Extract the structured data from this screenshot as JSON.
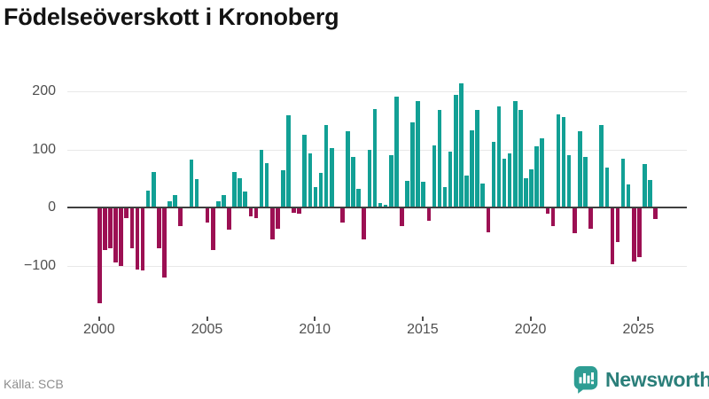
{
  "title": "Födelseöverskott i Kronoberg",
  "source": "Källa: SCB",
  "logo": {
    "text": "Newsworthy"
  },
  "colors": {
    "positive": "#12a095",
    "negative": "#9c1053",
    "grid": "#e8e8e8",
    "zero_line": "#3f3f3f",
    "tick_label": "#4f4f4f",
    "title": "#131313",
    "source": "#8e8e8e",
    "logo_icon": "#2e9d93",
    "logo_text": "#2b7f7a",
    "background": "#ffffff"
  },
  "chart_data": {
    "type": "bar",
    "title": "Födelseöverskott i Kronoberg",
    "xlabel": "",
    "ylabel": "",
    "x_start": "2000 Q1",
    "frequency": "quarterly",
    "values": [
      -163,
      -73,
      -70,
      -94,
      -100,
      -17,
      -70,
      -106,
      -108,
      29,
      62,
      -70,
      -119,
      12,
      22,
      -31,
      0,
      83,
      49,
      0,
      -26,
      -73,
      12,
      22,
      -37,
      61,
      51,
      28,
      -15,
      -18,
      99,
      77,
      -54,
      -36,
      65,
      158,
      -8,
      -10,
      126,
      93,
      36,
      60,
      142,
      103,
      0,
      -25,
      132,
      87,
      32,
      -54,
      99,
      170,
      9,
      5,
      91,
      191,
      -32,
      47,
      146,
      183,
      45,
      -22,
      107,
      168,
      36,
      96,
      193,
      214,
      56,
      133,
      168,
      42,
      -42,
      113,
      174,
      85,
      94,
      183,
      168,
      51,
      66,
      106,
      119,
      -10,
      -31,
      161,
      155,
      91,
      -43,
      132,
      88,
      -36,
      0,
      142,
      69,
      -97,
      -59,
      85,
      40,
      -92,
      -84,
      75,
      48,
      -19
    ],
    "yticks": [
      200,
      100,
      0,
      -100
    ],
    "xticks": [
      2000,
      2005,
      2010,
      2015,
      2020,
      2025
    ],
    "ylim": [
      -183,
      227
    ],
    "grid": true,
    "legend": "none"
  }
}
